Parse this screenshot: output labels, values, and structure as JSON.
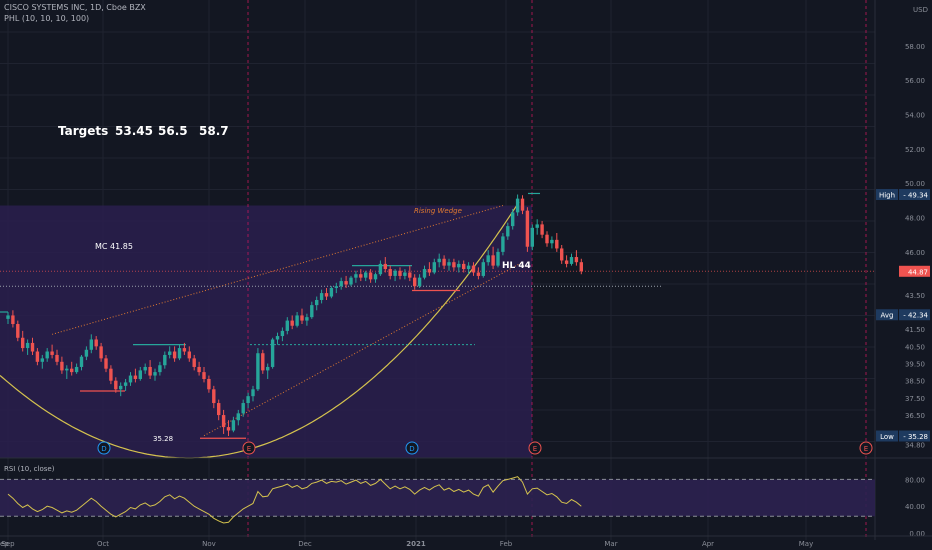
{
  "header": {
    "title": "CISCO SYSTEMS INC, 1D, Cboe BZX",
    "indicator": "PHL (10, 10, 10, 100)",
    "currency": "USD"
  },
  "annotations": {
    "targets_label": "Targets",
    "targets": [
      "53.45",
      "56.5",
      "58.7"
    ],
    "mc": "MC  41.85",
    "hl": "HL 44",
    "low_value": "35.28",
    "pattern": "Rising Wedge"
  },
  "badges": {
    "high": {
      "label": "High",
      "value": "49.34",
      "price": 49.34
    },
    "avg": {
      "label": "Avg",
      "value": "42.34",
      "price": 42.34
    },
    "low": {
      "label": "Low",
      "value": "35.28",
      "price": 35.28
    },
    "last": {
      "value": "44.87",
      "price": 44.87
    }
  },
  "colors": {
    "background": "#131722",
    "grid": "#1f2330",
    "up": "#26a69a",
    "down": "#ef5350",
    "zone": "#2a1f4d",
    "curve": "#d4c24e",
    "wedge": "#e07a30",
    "rsi": "#d4c24e",
    "rsi_band": "#2c2150",
    "event_line": "#c2185b",
    "dividend": "#2196f3",
    "earnings": "#ef5350"
  },
  "chart_data": {
    "type": "candlestick",
    "price_axis": {
      "ticks": [
        "58.00",
        "56.00",
        "54.00",
        "52.00",
        "50.00",
        "48.00",
        "46.00",
        "43.50",
        "41.50",
        "40.50",
        "39.50",
        "38.50",
        "37.50",
        "36.50",
        "34.80"
      ],
      "range": [
        34.0,
        59.5
      ]
    },
    "time_axis": {
      "labels": [
        "Sep",
        "Oct",
        "Nov",
        "Dec",
        "2021",
        "Feb",
        "Mar",
        "Apr",
        "May"
      ]
    },
    "events": [
      {
        "type": "D",
        "label": "D"
      },
      {
        "type": "E",
        "label": "E"
      },
      {
        "type": "D",
        "label": "D"
      },
      {
        "type": "E",
        "label": "E"
      },
      {
        "type": "E",
        "label": "E"
      }
    ],
    "candles": [
      [
        42.1,
        42.5,
        41.8,
        42.3
      ],
      [
        42.3,
        42.6,
        41.6,
        41.8
      ],
      [
        41.8,
        42.0,
        40.8,
        41.0
      ],
      [
        41.0,
        41.4,
        40.2,
        40.4
      ],
      [
        40.4,
        40.9,
        40.0,
        40.7
      ],
      [
        40.7,
        41.0,
        40.0,
        40.2
      ],
      [
        40.2,
        40.4,
        39.4,
        39.6
      ],
      [
        39.6,
        40.0,
        39.2,
        39.8
      ],
      [
        39.8,
        40.4,
        39.6,
        40.2
      ],
      [
        40.2,
        40.6,
        39.8,
        40.0
      ],
      [
        40.0,
        40.3,
        39.4,
        39.6
      ],
      [
        39.6,
        39.9,
        38.9,
        39.1
      ],
      [
        39.1,
        39.4,
        38.6,
        39.2
      ],
      [
        39.2,
        39.6,
        38.8,
        39.0
      ],
      [
        39.0,
        39.5,
        38.9,
        39.3
      ],
      [
        39.3,
        40.0,
        39.1,
        39.9
      ],
      [
        39.9,
        40.5,
        39.7,
        40.3
      ],
      [
        40.3,
        41.2,
        40.1,
        40.9
      ],
      [
        40.9,
        41.1,
        40.3,
        40.5
      ],
      [
        40.5,
        40.7,
        39.6,
        39.8
      ],
      [
        39.8,
        40.0,
        39.0,
        39.2
      ],
      [
        39.2,
        39.4,
        38.3,
        38.5
      ],
      [
        38.5,
        38.7,
        37.8,
        38.0
      ],
      [
        38.0,
        38.4,
        37.6,
        38.2
      ],
      [
        38.2,
        38.6,
        37.9,
        38.4
      ],
      [
        38.4,
        39.0,
        38.2,
        38.8
      ],
      [
        38.8,
        39.2,
        38.4,
        38.6
      ],
      [
        38.6,
        39.3,
        38.5,
        39.1
      ],
      [
        39.1,
        39.5,
        38.9,
        39.3
      ],
      [
        39.3,
        39.7,
        38.6,
        38.8
      ],
      [
        38.8,
        39.2,
        38.5,
        39.0
      ],
      [
        39.0,
        39.6,
        38.8,
        39.4
      ],
      [
        39.4,
        40.2,
        39.2,
        40.0
      ],
      [
        40.0,
        40.5,
        39.8,
        40.2
      ],
      [
        40.2,
        40.5,
        39.6,
        39.8
      ],
      [
        39.8,
        40.6,
        39.7,
        40.4
      ],
      [
        40.4,
        40.7,
        40.0,
        40.2
      ],
      [
        40.2,
        40.5,
        39.6,
        39.8
      ],
      [
        39.8,
        40.0,
        39.1,
        39.3
      ],
      [
        39.3,
        39.6,
        38.8,
        39.0
      ],
      [
        39.0,
        39.3,
        38.4,
        38.6
      ],
      [
        38.6,
        38.8,
        37.8,
        38.0
      ],
      [
        38.0,
        38.2,
        36.9,
        37.2
      ],
      [
        37.2,
        37.4,
        36.2,
        36.5
      ],
      [
        36.5,
        36.8,
        35.4,
        35.8
      ],
      [
        35.8,
        36.2,
        35.28,
        35.6
      ],
      [
        35.6,
        36.4,
        35.5,
        36.2
      ],
      [
        36.2,
        36.8,
        35.9,
        36.6
      ],
      [
        36.6,
        37.4,
        36.4,
        37.2
      ],
      [
        37.2,
        37.8,
        36.9,
        37.6
      ],
      [
        37.6,
        38.2,
        37.3,
        38.0
      ],
      [
        38.0,
        40.4,
        37.9,
        40.1
      ],
      [
        40.1,
        40.3,
        38.9,
        39.1
      ],
      [
        39.1,
        39.5,
        38.6,
        39.3
      ],
      [
        39.3,
        41.0,
        39.2,
        40.9
      ],
      [
        40.9,
        41.3,
        40.6,
        41.1
      ],
      [
        41.1,
        41.6,
        40.8,
        41.4
      ],
      [
        41.4,
        42.2,
        41.2,
        42.0
      ],
      [
        42.0,
        42.3,
        41.5,
        41.7
      ],
      [
        41.7,
        42.5,
        41.6,
        42.3
      ],
      [
        42.3,
        42.7,
        41.8,
        42.0
      ],
      [
        42.0,
        42.4,
        41.7,
        42.2
      ],
      [
        42.2,
        43.1,
        42.1,
        42.9
      ],
      [
        42.9,
        43.4,
        42.6,
        43.2
      ],
      [
        43.2,
        43.8,
        43.0,
        43.6
      ],
      [
        43.6,
        43.9,
        43.2,
        43.4
      ],
      [
        43.4,
        44.0,
        43.3,
        43.9
      ],
      [
        43.9,
        44.2,
        43.6,
        44.0
      ],
      [
        44.0,
        44.5,
        43.8,
        44.3
      ],
      [
        44.3,
        44.6,
        43.9,
        44.1
      ],
      [
        44.1,
        44.6,
        44.0,
        44.5
      ],
      [
        44.5,
        44.9,
        44.2,
        44.7
      ],
      [
        44.7,
        45.0,
        44.3,
        44.5
      ],
      [
        44.5,
        44.9,
        44.3,
        44.8
      ],
      [
        44.8,
        45.0,
        44.2,
        44.4
      ],
      [
        44.4,
        44.8,
        44.2,
        44.7
      ],
      [
        44.7,
        45.5,
        44.6,
        45.3
      ],
      [
        45.3,
        45.7,
        44.8,
        45.0
      ],
      [
        45.0,
        45.2,
        44.4,
        44.6
      ],
      [
        44.6,
        45.0,
        44.3,
        44.9
      ],
      [
        44.9,
        45.1,
        44.4,
        44.6
      ],
      [
        44.6,
        45.0,
        44.4,
        44.8
      ],
      [
        44.8,
        45.2,
        44.3,
        44.5
      ],
      [
        44.5,
        44.7,
        43.8,
        44.0
      ],
      [
        44.0,
        44.7,
        43.9,
        44.5
      ],
      [
        44.5,
        45.2,
        44.4,
        45.0
      ],
      [
        45.0,
        45.4,
        44.6,
        44.8
      ],
      [
        44.8,
        45.6,
        44.7,
        45.4
      ],
      [
        45.4,
        45.9,
        45.1,
        45.6
      ],
      [
        45.6,
        45.8,
        45.0,
        45.2
      ],
      [
        45.2,
        45.6,
        44.9,
        45.4
      ],
      [
        45.4,
        45.6,
        44.9,
        45.1
      ],
      [
        45.1,
        45.5,
        44.8,
        45.3
      ],
      [
        45.3,
        45.5,
        44.8,
        45.0
      ],
      [
        45.0,
        45.4,
        44.7,
        45.2
      ],
      [
        45.2,
        45.4,
        44.6,
        44.8
      ],
      [
        44.8,
        45.1,
        44.4,
        44.6
      ],
      [
        44.6,
        45.6,
        44.5,
        45.4
      ],
      [
        45.4,
        46.1,
        45.2,
        45.8
      ],
      [
        45.8,
        46.3,
        45.0,
        45.2
      ],
      [
        45.2,
        46.2,
        45.1,
        46.0
      ],
      [
        46.0,
        47.1,
        45.8,
        46.9
      ],
      [
        46.9,
        47.7,
        46.7,
        47.5
      ],
      [
        47.5,
        48.5,
        47.3,
        48.3
      ],
      [
        48.3,
        49.34,
        48.1,
        49.1
      ],
      [
        49.1,
        49.3,
        48.2,
        48.4
      ],
      [
        48.4,
        48.6,
        46.0,
        46.3
      ],
      [
        46.3,
        47.6,
        46.1,
        47.4
      ],
      [
        47.4,
        47.9,
        47.0,
        47.6
      ],
      [
        47.6,
        47.8,
        46.8,
        47.0
      ],
      [
        47.0,
        47.2,
        46.3,
        46.5
      ],
      [
        46.5,
        46.9,
        46.2,
        46.7
      ],
      [
        46.7,
        47.1,
        46.0,
        46.2
      ],
      [
        46.2,
        46.4,
        45.3,
        45.5
      ],
      [
        45.5,
        45.8,
        45.1,
        45.3
      ],
      [
        45.3,
        45.9,
        45.2,
        45.7
      ],
      [
        45.7,
        46.1,
        45.2,
        45.4
      ],
      [
        45.4,
        45.6,
        44.7,
        44.87
      ]
    ],
    "rsi": {
      "indicator": "RSI (10, close)",
      "ticks": [
        "80.00",
        "40.00",
        "0.00"
      ],
      "upper": 80,
      "lower": 25,
      "values": [
        58,
        52,
        44,
        38,
        42,
        36,
        32,
        35,
        40,
        38,
        34,
        30,
        33,
        31,
        34,
        40,
        46,
        52,
        47,
        40,
        34,
        28,
        24,
        28,
        32,
        38,
        36,
        42,
        45,
        40,
        42,
        47,
        54,
        57,
        51,
        55,
        52,
        46,
        40,
        36,
        32,
        28,
        22,
        18,
        15,
        16,
        24,
        30,
        36,
        40,
        44,
        62,
        54,
        55,
        66,
        68,
        70,
        73,
        68,
        71,
        66,
        68,
        74,
        76,
        79,
        74,
        77,
        76,
        78,
        73,
        76,
        79,
        74,
        77,
        71,
        74,
        80,
        73,
        66,
        70,
        66,
        69,
        65,
        58,
        64,
        68,
        64,
        69,
        72,
        64,
        67,
        62,
        65,
        61,
        64,
        58,
        55,
        68,
        72,
        61,
        70,
        78,
        80,
        82,
        84,
        76,
        58,
        66,
        67,
        62,
        57,
        59,
        54,
        46,
        44,
        50,
        46,
        40
      ]
    }
  }
}
